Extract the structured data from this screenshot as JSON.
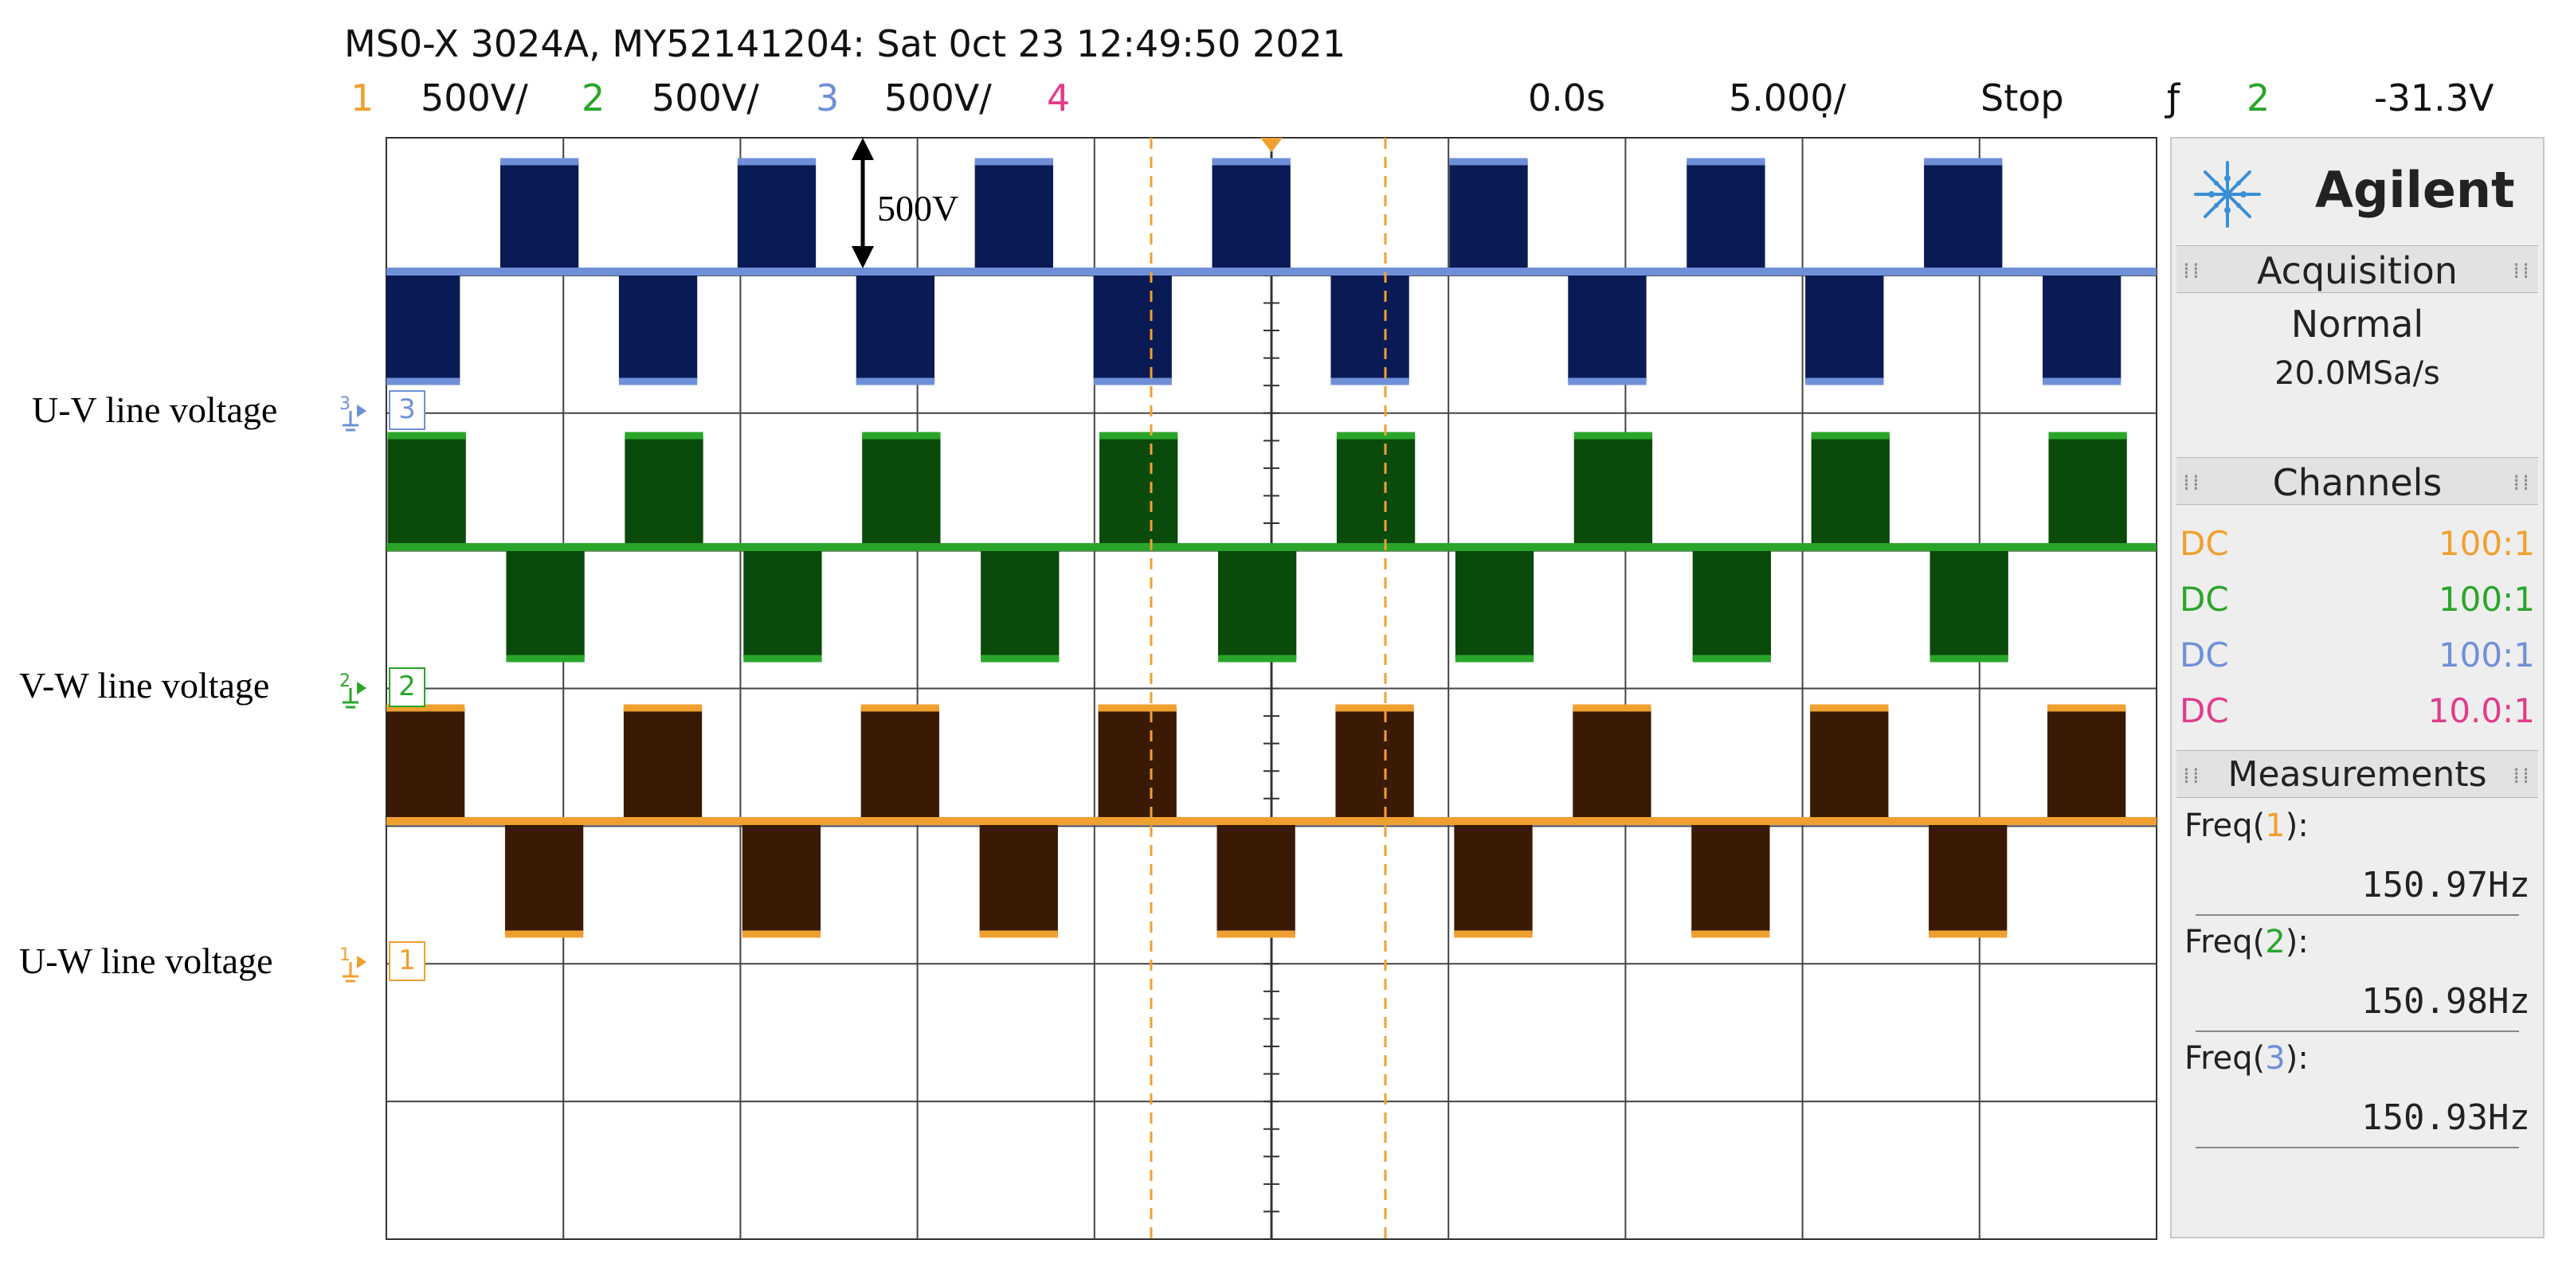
{
  "header": {
    "title": "MS0-X 3024A, MY52141204: Sat 0ct 23 12:49:50 2021",
    "status": [
      {
        "text": "1",
        "color": "#f0a030"
      },
      {
        "text": "500V/",
        "color": "#111111"
      },
      {
        "text": "2",
        "color": "#2aa52a"
      },
      {
        "text": "500V/",
        "color": "#111111"
      },
      {
        "text": "3",
        "color": "#6f90d8"
      },
      {
        "text": "500V/",
        "color": "#111111"
      },
      {
        "text": "4",
        "color": "#e03c8a"
      },
      {
        "text": "0.0s",
        "color": "#111111"
      },
      {
        "text": "5.000̣/",
        "color": "#111111"
      },
      {
        "text": "Stop",
        "color": "#111111"
      },
      {
        "text": "ƒ",
        "color": "#111111"
      },
      {
        "text": "2",
        "color": "#2aa52a"
      },
      {
        "text": "-31.3V",
        "color": "#111111"
      }
    ]
  },
  "scale_annotation": "500V",
  "channel_labels": [
    {
      "label": "U-V line voltage",
      "marker": "3",
      "color": "#6f90d8"
    },
    {
      "label": "V-W line voltage",
      "marker": "2",
      "color": "#2aa52a"
    },
    {
      "label": "U-W line voltage",
      "marker": "1",
      "color": "#f0a030"
    }
  ],
  "panel": {
    "brand": "Agilent",
    "brand_icon": "agilent-spark-icon",
    "acquisition": {
      "heading": "Acquisition",
      "mode": "Normal",
      "rate": "20.0MSa/s"
    },
    "channels": {
      "heading": "Channels",
      "rows": [
        {
          "coupling": "DC",
          "probe": "100:1",
          "color": "#f0a030"
        },
        {
          "coupling": "DC",
          "probe": "100:1",
          "color": "#2aa52a"
        },
        {
          "coupling": "DC",
          "probe": "100:1",
          "color": "#6f90d8"
        },
        {
          "coupling": "DC",
          "probe": "10.0:1",
          "color": "#e03c8a"
        }
      ]
    },
    "measurements": {
      "heading": "Measurements",
      "items": [
        {
          "prefix": "Freq(",
          "channel": "1",
          "suffix": "):",
          "value": "150.97Hz",
          "color": "#f0a030"
        },
        {
          "prefix": "Freq(",
          "channel": "2",
          "suffix": "):",
          "value": "150.98Hz",
          "color": "#2aa52a"
        },
        {
          "prefix": "Freq(",
          "channel": "3",
          "suffix": "):",
          "value": "150.93Hz",
          "color": "#6f90d8"
        }
      ]
    }
  },
  "chart_data": {
    "type": "line",
    "title": "",
    "xlabel": "",
    "ylabel": "",
    "grid": true,
    "x_divisions": 10,
    "y_divisions": 8,
    "time_per_division": "5.000̣/",
    "volts_per_division": "500V/",
    "series": [
      {
        "name": "U-V line voltage",
        "channel": "3",
        "color": "#6f90d8",
        "fill": "#0a1a55",
        "frequency": "150.93Hz",
        "starts_negative": true
      },
      {
        "name": "V-W line voltage",
        "channel": "2",
        "color": "#2aa52a",
        "fill": "#0a4a0a",
        "frequency": "150.98Hz",
        "starts_negative": false
      },
      {
        "name": "U-W line voltage",
        "channel": "1",
        "color": "#f0a030",
        "fill": "#3a1a05",
        "frequency": "150.97Hz",
        "starts_negative": false
      }
    ]
  }
}
